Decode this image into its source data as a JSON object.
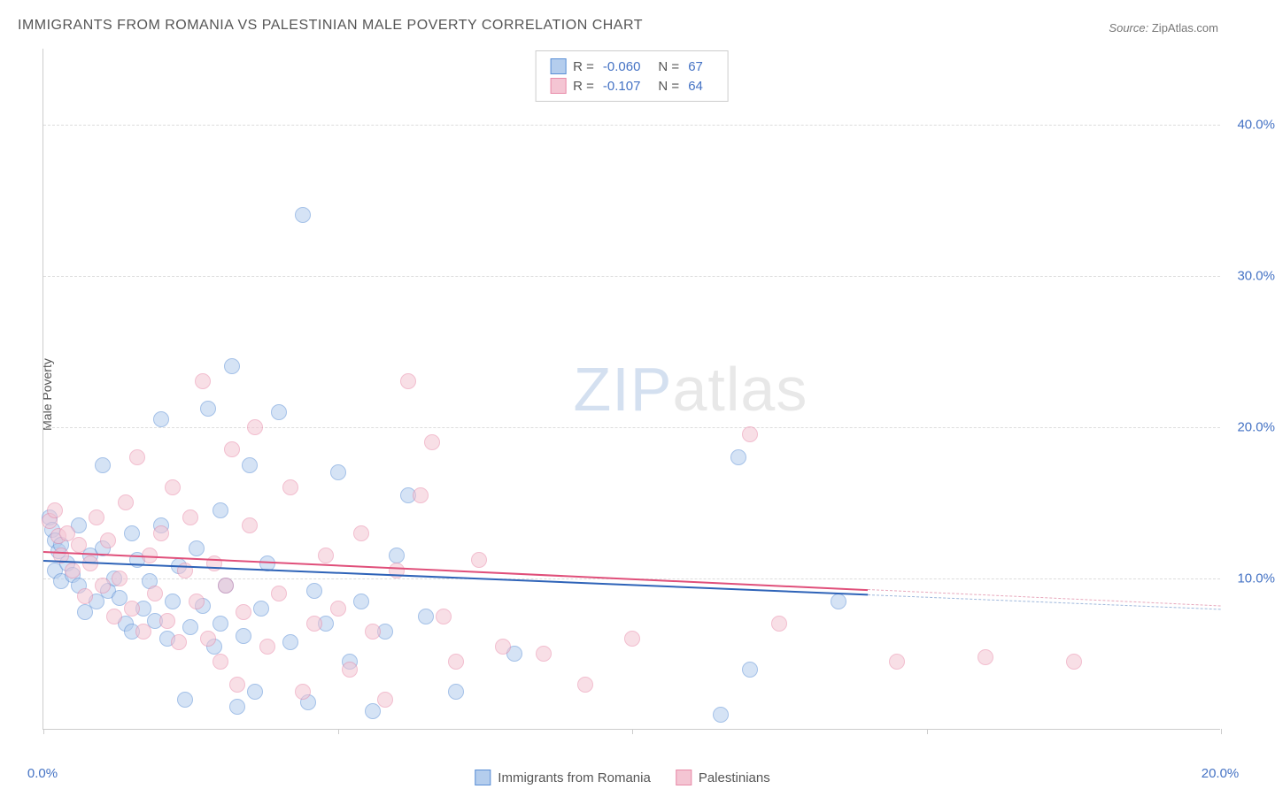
{
  "title": "IMMIGRANTS FROM ROMANIA VS PALESTINIAN MALE POVERTY CORRELATION CHART",
  "source_label": "Source:",
  "source_value": "ZipAtlas.com",
  "y_axis_title": "Male Poverty",
  "watermark_zip": "ZIP",
  "watermark_atlas": "atlas",
  "chart": {
    "type": "scatter",
    "xlim": [
      0,
      20
    ],
    "ylim": [
      0,
      45
    ],
    "x_ticks": [
      0,
      5,
      10,
      15,
      20
    ],
    "x_tick_labels": [
      "0.0%",
      "",
      "",
      "",
      "20.0%"
    ],
    "y_grid": [
      10,
      20,
      30,
      40
    ],
    "y_tick_labels": [
      "10.0%",
      "20.0%",
      "30.0%",
      "40.0%"
    ],
    "background_color": "#ffffff",
    "grid_color": "#dddddd",
    "axis_color": "#cccccc",
    "point_radius": 9,
    "series": [
      {
        "name": "Immigrants from Romania",
        "color_fill": "#b4cded",
        "color_stroke": "#5b8fd6",
        "fill_opacity": 0.55,
        "R": "-0.060",
        "N": "67",
        "trend": {
          "x1": 0,
          "y1": 11.2,
          "x2": 20,
          "y2": 8.0,
          "color": "#2e63b8",
          "dash_color": "#9fb8dc"
        },
        "points": [
          [
            0.1,
            14.0
          ],
          [
            0.15,
            13.2
          ],
          [
            0.2,
            12.5
          ],
          [
            0.2,
            10.5
          ],
          [
            0.25,
            11.8
          ],
          [
            0.3,
            12.2
          ],
          [
            0.3,
            9.8
          ],
          [
            0.4,
            11.0
          ],
          [
            0.5,
            10.2
          ],
          [
            0.6,
            9.5
          ],
          [
            0.6,
            13.5
          ],
          [
            0.7,
            7.8
          ],
          [
            0.8,
            11.5
          ],
          [
            0.9,
            8.5
          ],
          [
            1.0,
            12.0
          ],
          [
            1.0,
            17.5
          ],
          [
            1.1,
            9.2
          ],
          [
            1.2,
            10.0
          ],
          [
            1.3,
            8.7
          ],
          [
            1.4,
            7.0
          ],
          [
            1.5,
            6.5
          ],
          [
            1.5,
            13.0
          ],
          [
            1.6,
            11.2
          ],
          [
            1.7,
            8.0
          ],
          [
            1.8,
            9.8
          ],
          [
            1.9,
            7.2
          ],
          [
            2.0,
            13.5
          ],
          [
            2.0,
            20.5
          ],
          [
            2.1,
            6.0
          ],
          [
            2.2,
            8.5
          ],
          [
            2.3,
            10.8
          ],
          [
            2.4,
            2.0
          ],
          [
            2.5,
            6.8
          ],
          [
            2.6,
            12.0
          ],
          [
            2.7,
            8.2
          ],
          [
            2.8,
            21.2
          ],
          [
            2.9,
            5.5
          ],
          [
            3.0,
            7.0
          ],
          [
            3.0,
            14.5
          ],
          [
            3.1,
            9.5
          ],
          [
            3.2,
            24.0
          ],
          [
            3.3,
            1.5
          ],
          [
            3.4,
            6.2
          ],
          [
            3.5,
            17.5
          ],
          [
            3.6,
            2.5
          ],
          [
            3.7,
            8.0
          ],
          [
            3.8,
            11.0
          ],
          [
            4.0,
            21.0
          ],
          [
            4.2,
            5.8
          ],
          [
            4.4,
            34.0
          ],
          [
            4.5,
            1.8
          ],
          [
            4.6,
            9.2
          ],
          [
            4.8,
            7.0
          ],
          [
            5.0,
            17.0
          ],
          [
            5.2,
            4.5
          ],
          [
            5.4,
            8.5
          ],
          [
            5.6,
            1.2
          ],
          [
            5.8,
            6.5
          ],
          [
            6.0,
            11.5
          ],
          [
            6.2,
            15.5
          ],
          [
            6.5,
            7.5
          ],
          [
            7.0,
            2.5
          ],
          [
            8.0,
            5.0
          ],
          [
            11.5,
            1.0
          ],
          [
            11.8,
            18.0
          ],
          [
            12.0,
            4.0
          ],
          [
            13.5,
            8.5
          ]
        ]
      },
      {
        "name": "Palestinians",
        "color_fill": "#f4c5d3",
        "color_stroke": "#e88aa8",
        "fill_opacity": 0.55,
        "R": "-0.107",
        "N": "64",
        "trend": {
          "x1": 0,
          "y1": 11.8,
          "x2": 20,
          "y2": 8.2,
          "color": "#e04f7a",
          "dash_color": "#e8a8bc"
        },
        "points": [
          [
            0.1,
            13.8
          ],
          [
            0.2,
            14.5
          ],
          [
            0.25,
            12.8
          ],
          [
            0.3,
            11.5
          ],
          [
            0.4,
            13.0
          ],
          [
            0.5,
            10.5
          ],
          [
            0.6,
            12.2
          ],
          [
            0.7,
            8.8
          ],
          [
            0.8,
            11.0
          ],
          [
            0.9,
            14.0
          ],
          [
            1.0,
            9.5
          ],
          [
            1.1,
            12.5
          ],
          [
            1.2,
            7.5
          ],
          [
            1.3,
            10.0
          ],
          [
            1.4,
            15.0
          ],
          [
            1.5,
            8.0
          ],
          [
            1.6,
            18.0
          ],
          [
            1.7,
            6.5
          ],
          [
            1.8,
            11.5
          ],
          [
            1.9,
            9.0
          ],
          [
            2.0,
            13.0
          ],
          [
            2.1,
            7.2
          ],
          [
            2.2,
            16.0
          ],
          [
            2.3,
            5.8
          ],
          [
            2.4,
            10.5
          ],
          [
            2.5,
            14.0
          ],
          [
            2.6,
            8.5
          ],
          [
            2.7,
            23.0
          ],
          [
            2.8,
            6.0
          ],
          [
            2.9,
            11.0
          ],
          [
            3.0,
            4.5
          ],
          [
            3.1,
            9.5
          ],
          [
            3.2,
            18.5
          ],
          [
            3.3,
            3.0
          ],
          [
            3.4,
            7.8
          ],
          [
            3.5,
            13.5
          ],
          [
            3.6,
            20.0
          ],
          [
            3.8,
            5.5
          ],
          [
            4.0,
            9.0
          ],
          [
            4.2,
            16.0
          ],
          [
            4.4,
            2.5
          ],
          [
            4.6,
            7.0
          ],
          [
            4.8,
            11.5
          ],
          [
            5.0,
            8.0
          ],
          [
            5.2,
            4.0
          ],
          [
            5.4,
            13.0
          ],
          [
            5.6,
            6.5
          ],
          [
            5.8,
            2.0
          ],
          [
            6.0,
            10.5
          ],
          [
            6.2,
            23.0
          ],
          [
            6.4,
            15.5
          ],
          [
            6.6,
            19.0
          ],
          [
            6.8,
            7.5
          ],
          [
            7.0,
            4.5
          ],
          [
            7.4,
            11.2
          ],
          [
            7.8,
            5.5
          ],
          [
            8.5,
            5.0
          ],
          [
            9.2,
            3.0
          ],
          [
            10.0,
            6.0
          ],
          [
            12.0,
            19.5
          ],
          [
            12.5,
            7.0
          ],
          [
            14.5,
            4.5
          ],
          [
            16.0,
            4.8
          ],
          [
            17.5,
            4.5
          ]
        ]
      }
    ]
  },
  "legend_top": {
    "rows": [
      {
        "swatch_fill": "#b4cded",
        "swatch_stroke": "#5b8fd6",
        "R_label": "R =",
        "R": "-0.060",
        "N_label": "N =",
        "N": "67"
      },
      {
        "swatch_fill": "#f4c5d3",
        "swatch_stroke": "#e88aa8",
        "R_label": "R =",
        "R": "-0.107",
        "N_label": "N =",
        "N": "64"
      }
    ]
  },
  "legend_bottom": {
    "items": [
      {
        "swatch_fill": "#b4cded",
        "swatch_stroke": "#5b8fd6",
        "label": "Immigrants from Romania"
      },
      {
        "swatch_fill": "#f4c5d3",
        "swatch_stroke": "#e88aa8",
        "label": "Palestinians"
      }
    ]
  }
}
